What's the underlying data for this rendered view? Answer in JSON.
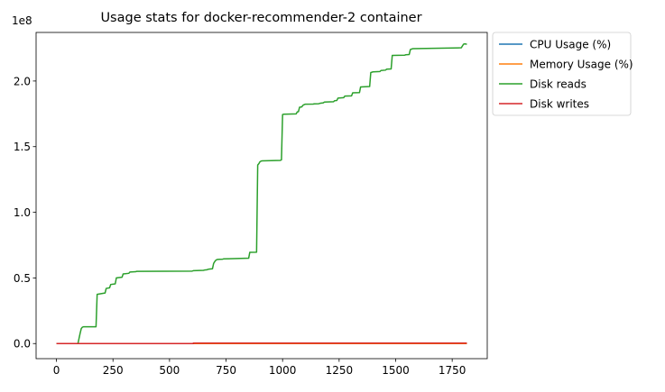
{
  "chart_data": {
    "type": "line",
    "title": "Usage stats for docker-recommender-2 container",
    "xlabel": "",
    "ylabel": "",
    "y_offset_label": "1e8",
    "y_scale_factor": 100000000,
    "xlim": [
      -90,
      1905
    ],
    "ylim": [
      -11500000,
      237000000
    ],
    "xticks": [
      0,
      250,
      500,
      750,
      1000,
      1250,
      1500,
      1750
    ],
    "xtick_labels": [
      "0",
      "250",
      "500",
      "750",
      "1000",
      "1250",
      "1500",
      "1750"
    ],
    "yticks": [
      0,
      50000000,
      100000000,
      150000000,
      200000000
    ],
    "ytick_labels": [
      "0.0",
      "0.5",
      "1.0",
      "1.5",
      "2.0"
    ],
    "grid": false,
    "legend_placement": "outside-top-right",
    "series": [
      {
        "name": "CPU Usage (%)",
        "color": "#1f77b4",
        "step": true,
        "x": [
          0,
          1815
        ],
        "y": [
          0,
          0
        ]
      },
      {
        "name": "Memory Usage (%)",
        "color": "#ff7f0e",
        "step": true,
        "x": [
          0,
          1815
        ],
        "y": [
          0,
          0
        ]
      },
      {
        "name": "Disk reads",
        "color": "#2ca02c",
        "step": false,
        "x": [
          0,
          95,
          105,
          110,
          115,
          120,
          175,
          180,
          215,
          220,
          235,
          240,
          260,
          265,
          290,
          295,
          320,
          325,
          350,
          355,
          600,
          605,
          650,
          655,
          665,
          670,
          675,
          680,
          690,
          695,
          700,
          705,
          710,
          720,
          735,
          740,
          850,
          855,
          885,
          890,
          895,
          900,
          905,
          910,
          990,
          995,
          1000,
          1005,
          1060,
          1065,
          1070,
          1075,
          1085,
          1090,
          1095,
          1100,
          1135,
          1140,
          1160,
          1165,
          1180,
          1185,
          1225,
          1230,
          1240,
          1245,
          1270,
          1275,
          1305,
          1310,
          1340,
          1345,
          1385,
          1390,
          1395,
          1400,
          1430,
          1435,
          1455,
          1460,
          1480,
          1485,
          1540,
          1545,
          1560,
          1565,
          1570,
          1575,
          1790,
          1800,
          1805,
          1815
        ],
        "y": [
          0,
          0,
          8000000,
          11500000,
          12500000,
          12800000,
          12800000,
          37500000,
          38500000,
          42000000,
          42500000,
          45000000,
          45500000,
          50000000,
          50500000,
          53000000,
          53500000,
          54500000,
          54700000,
          55000000,
          55200000,
          55500000,
          55800000,
          56000000,
          56200000,
          56500000,
          56700000,
          56800000,
          57000000,
          61000000,
          62500000,
          63500000,
          64000000,
          64200000,
          64300000,
          64500000,
          65000000,
          69500000,
          69600000,
          136000000,
          137000000,
          138500000,
          139000000,
          139200000,
          139500000,
          140000000,
          174500000,
          174700000,
          175000000,
          176500000,
          176600000,
          180000000,
          180300000,
          181500000,
          182000000,
          182300000,
          182400000,
          182600000,
          182700000,
          183000000,
          183400000,
          184000000,
          184200000,
          185000000,
          185200000,
          187000000,
          187300000,
          188500000,
          188700000,
          191000000,
          191200000,
          195500000,
          195800000,
          206500000,
          206700000,
          207000000,
          207200000,
          208000000,
          208300000,
          209000000,
          209200000,
          219500000,
          219700000,
          220000000,
          220200000,
          224000000,
          224300000,
          224600000,
          225300000,
          228000000,
          228300000,
          228000000
        ]
      },
      {
        "name": "Disk writes",
        "color": "#d62728",
        "step": true,
        "x": [
          0,
          600,
          605,
          1815
        ],
        "y": [
          0,
          0,
          300000,
          300000
        ]
      }
    ]
  }
}
